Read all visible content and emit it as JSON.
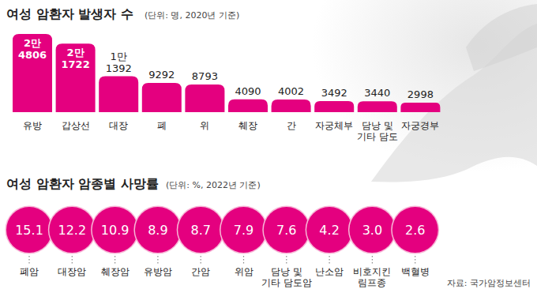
{
  "chart_data": [
    {
      "type": "bar",
      "title": "여성 암환자 발생자 수",
      "subtitle": "(단위: 명, 2020년 기준)",
      "categories": [
        "유방",
        "갑상선",
        "대장",
        "폐",
        "위",
        "췌장",
        "간",
        "자궁체부",
        "담낭 및\n기타 담도",
        "자궁경부"
      ],
      "values": [
        24806,
        21722,
        11392,
        9292,
        8793,
        4090,
        4002,
        3492,
        3440,
        2998
      ],
      "value_labels": [
        "2만\n4806",
        "2만\n1722",
        "1만\n1392",
        "9292",
        "8793",
        "4090",
        "4002",
        "3492",
        "3440",
        "2998"
      ],
      "color": "#e4007f",
      "data_labels": true,
      "tick_labels": "x",
      "grid": false
    },
    {
      "type": "circle",
      "title": "여성 암환자 암종별 사망률",
      "subtitle": "(단위: %, 2022년 기준)",
      "categories": [
        "폐암",
        "대장암",
        "췌장암",
        "유방암",
        "간암",
        "위암",
        "담낭 및\n기타 담도암",
        "난소암",
        "비호지킨\n림프종",
        "백혈병"
      ],
      "values": [
        15.1,
        12.2,
        10.9,
        8.9,
        8.7,
        7.9,
        7.6,
        4.2,
        3.0,
        2.6
      ],
      "value_labels": [
        "15.1",
        "12.2",
        "10.9",
        "8.9",
        "8.7",
        "7.9",
        "7.6",
        "4.2",
        "3.0",
        "2.6"
      ],
      "color": "#e4007f",
      "data_labels": true,
      "tick_labels": "x",
      "source": "자료: 국가암정보센터"
    }
  ]
}
